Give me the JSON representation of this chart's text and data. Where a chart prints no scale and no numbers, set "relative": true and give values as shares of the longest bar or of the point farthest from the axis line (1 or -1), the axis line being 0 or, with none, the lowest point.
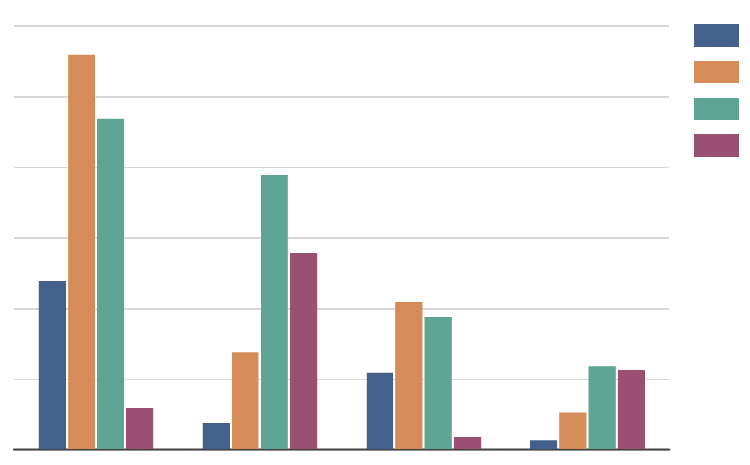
{
  "chart_data": {
    "type": "bar",
    "relative": true,
    "categories": [
      null,
      null,
      null,
      null
    ],
    "series": [
      {
        "color": "#44618c",
        "values": [
          0.427,
          0.068,
          0.194,
          0.023
        ]
      },
      {
        "color": "#d68c58",
        "values": [
          1,
          0.247,
          0.373,
          0.094
        ]
      },
      {
        "color": "#5ea595",
        "values": [
          0.839,
          0.695,
          0.337,
          0.211
        ]
      },
      {
        "color": "#9b4f73",
        "values": [
          0.104,
          0.498,
          0.032,
          0.202
        ]
      }
    ],
    "grid": true
  }
}
